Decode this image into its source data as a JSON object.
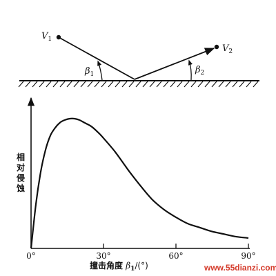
{
  "diagram": {
    "v1": "V",
    "v1_sub": "1",
    "v2": "V",
    "v2_sub": "2",
    "beta1": "β",
    "beta1_sub": "1",
    "beta2": "β",
    "beta2_sub": "2"
  },
  "chart_data": {
    "type": "line",
    "ylabel": "相对侵蚀",
    "xlabel_prefix": "撞击角度 ",
    "xlabel_symbol": "β",
    "xlabel_sub": "1",
    "xlabel_suffix": "/(°)",
    "xticks": [
      "0°",
      "30°",
      "60°",
      "90°"
    ],
    "xlim": [
      0,
      90
    ],
    "ylim": [
      0,
      1
    ],
    "grid": false,
    "series": [
      {
        "x": [
          0,
          2,
          4,
          6,
          8,
          10,
          12,
          14,
          16,
          18,
          20,
          22,
          25,
          28,
          30,
          35,
          40,
          45,
          50,
          55,
          60,
          65,
          70,
          75,
          80,
          85,
          90
        ],
        "y": [
          0.0,
          0.34,
          0.59,
          0.76,
          0.87,
          0.93,
          0.97,
          0.99,
          1.0,
          1.0,
          0.99,
          0.97,
          0.94,
          0.89,
          0.85,
          0.74,
          0.61,
          0.49,
          0.38,
          0.3,
          0.24,
          0.19,
          0.16,
          0.13,
          0.11,
          0.09,
          0.08
        ]
      }
    ]
  },
  "watermark": "www.55dianzi.com"
}
